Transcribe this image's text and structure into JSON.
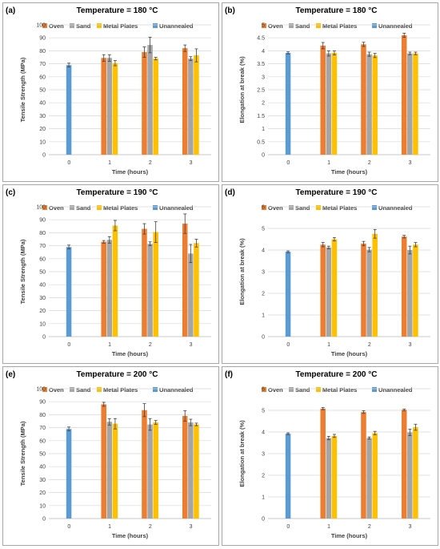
{
  "colors": {
    "Oven": "#ED7D31",
    "Sand": "#A5A5A5",
    "Metal Plates": "#FFC000",
    "Unannealed": "#5B9BD5",
    "panel_border": "#A6A6A6",
    "grid": "#D9D9D9",
    "text": "#404040",
    "error_bar": "#404040"
  },
  "chart_data": [
    {
      "type": "bar",
      "panel_label": "(a)",
      "title": "Temperature = 180 °C",
      "xlabel": "Time (hours)",
      "ylabel": "Tensile Strength (MPa)",
      "ylim": [
        0,
        100
      ],
      "ytick_step": 10,
      "grid": true,
      "legend_position": "top",
      "categories": [
        "0",
        "1",
        "2",
        "3"
      ],
      "series": [
        {
          "name": "Oven",
          "values": [
            null,
            74.5,
            79.0,
            82.0
          ],
          "errors": [
            null,
            2.5,
            4.0,
            2.5
          ]
        },
        {
          "name": "Sand",
          "values": [
            null,
            74.5,
            84.5,
            74.0
          ],
          "errors": [
            null,
            2.5,
            6.0,
            1.5
          ]
        },
        {
          "name": "Metal Plates",
          "values": [
            null,
            70.5,
            74.0,
            76.5
          ],
          "errors": [
            null,
            2.0,
            1.0,
            5.0
          ]
        },
        {
          "name": "Unannealed",
          "values": [
            69.0,
            null,
            null,
            null
          ],
          "errors": [
            1.5,
            null,
            null,
            null
          ]
        }
      ]
    },
    {
      "type": "bar",
      "panel_label": "(b)",
      "title": "Temperature = 180 °C",
      "xlabel": "Time (hours)",
      "ylabel": "Elongation at break (%)",
      "ylim": [
        0,
        5
      ],
      "ytick_step": 0.5,
      "grid": true,
      "legend_position": "top",
      "categories": [
        "0",
        "1",
        "2",
        "3"
      ],
      "series": [
        {
          "name": "Oven",
          "values": [
            null,
            4.2,
            4.25,
            4.6
          ],
          "errors": [
            null,
            0.12,
            0.08,
            0.08
          ]
        },
        {
          "name": "Sand",
          "values": [
            null,
            3.9,
            3.87,
            3.9
          ],
          "errors": [
            null,
            0.1,
            0.08,
            0.05
          ]
        },
        {
          "name": "Metal Plates",
          "values": [
            null,
            3.92,
            3.82,
            3.9
          ],
          "errors": [
            null,
            0.08,
            0.08,
            0.05
          ]
        },
        {
          "name": "Unannealed",
          "values": [
            3.92,
            null,
            null,
            null
          ],
          "errors": [
            0.04,
            null,
            null,
            null
          ]
        }
      ]
    },
    {
      "type": "bar",
      "panel_label": "(c)",
      "title": "Temperature = 190 °C",
      "xlabel": "Time (hours)",
      "ylabel": "Tensile Strength (MPa)",
      "ylim": [
        0,
        100
      ],
      "ytick_step": 10,
      "grid": true,
      "legend_position": "top",
      "categories": [
        "0",
        "1",
        "2",
        "3"
      ],
      "series": [
        {
          "name": "Oven",
          "values": [
            null,
            73.0,
            83.0,
            87.0
          ],
          "errors": [
            null,
            1.0,
            4.0,
            7.5
          ]
        },
        {
          "name": "Sand",
          "values": [
            null,
            74.5,
            71.5,
            64.0
          ],
          "errors": [
            null,
            2.5,
            1.5,
            7.0
          ]
        },
        {
          "name": "Metal Plates",
          "values": [
            null,
            85.5,
            80.5,
            72.0
          ],
          "errors": [
            null,
            4.0,
            8.0,
            3.0
          ]
        },
        {
          "name": "Unannealed",
          "values": [
            69.0,
            null,
            null,
            null
          ],
          "errors": [
            1.5,
            null,
            null,
            null
          ]
        }
      ]
    },
    {
      "type": "bar",
      "panel_label": "(d)",
      "title": "Temperature = 190 °C",
      "xlabel": "Time (hours)",
      "ylabel": "Elongation at break (%)",
      "ylim": [
        0,
        6
      ],
      "ytick_step": 1,
      "grid": true,
      "legend_position": "top",
      "categories": [
        "0",
        "1",
        "2",
        "3"
      ],
      "series": [
        {
          "name": "Oven",
          "values": [
            null,
            4.25,
            4.3,
            4.62
          ],
          "errors": [
            null,
            0.1,
            0.1,
            0.06
          ]
        },
        {
          "name": "Sand",
          "values": [
            null,
            4.12,
            4.02,
            4.0
          ],
          "errors": [
            null,
            0.06,
            0.1,
            0.18
          ]
        },
        {
          "name": "Metal Plates",
          "values": [
            null,
            4.5,
            4.75,
            4.25
          ],
          "errors": [
            null,
            0.08,
            0.2,
            0.1
          ]
        },
        {
          "name": "Unannealed",
          "values": [
            3.92,
            null,
            null,
            null
          ],
          "errors": [
            0.04,
            null,
            null,
            null
          ]
        }
      ]
    },
    {
      "type": "bar",
      "panel_label": "(e)",
      "title": "Temperature = 200 °C",
      "xlabel": "Time (hours)",
      "ylabel": "Tensile Strength (MPa)",
      "ylim": [
        0,
        100
      ],
      "ytick_step": 10,
      "grid": true,
      "legend_position": "top",
      "categories": [
        "0",
        "1",
        "2",
        "3"
      ],
      "series": [
        {
          "name": "Oven",
          "values": [
            null,
            88.0,
            83.5,
            79.0
          ],
          "errors": [
            null,
            1.5,
            5.0,
            4.0
          ]
        },
        {
          "name": "Sand",
          "values": [
            null,
            74.5,
            72.5,
            74.0
          ],
          "errors": [
            null,
            2.5,
            4.5,
            2.5
          ]
        },
        {
          "name": "Metal Plates",
          "values": [
            null,
            73.0,
            74.0,
            72.5
          ],
          "errors": [
            null,
            4.0,
            1.5,
            1.0
          ]
        },
        {
          "name": "Unannealed",
          "values": [
            69.0,
            null,
            null,
            null
          ],
          "errors": [
            1.5,
            null,
            null,
            null
          ]
        }
      ]
    },
    {
      "type": "bar",
      "panel_label": "(f)",
      "title": "Temperature = 200 °C",
      "xlabel": "Time (hours)",
      "ylabel": "Elongation at break (%)",
      "ylim": [
        0,
        6
      ],
      "ytick_step": 1,
      "grid": true,
      "legend_position": "top",
      "categories": [
        "0",
        "1",
        "2",
        "3"
      ],
      "series": [
        {
          "name": "Oven",
          "values": [
            null,
            5.08,
            4.92,
            5.02
          ],
          "errors": [
            null,
            0.05,
            0.06,
            0.04
          ]
        },
        {
          "name": "Sand",
          "values": [
            null,
            3.72,
            3.72,
            3.98
          ],
          "errors": [
            null,
            0.08,
            0.05,
            0.15
          ]
        },
        {
          "name": "Metal Plates",
          "values": [
            null,
            3.82,
            3.95,
            4.22
          ],
          "errors": [
            null,
            0.07,
            0.08,
            0.14
          ]
        },
        {
          "name": "Unannealed",
          "values": [
            3.92,
            null,
            null,
            null
          ],
          "errors": [
            0.04,
            null,
            null,
            null
          ]
        }
      ]
    }
  ]
}
